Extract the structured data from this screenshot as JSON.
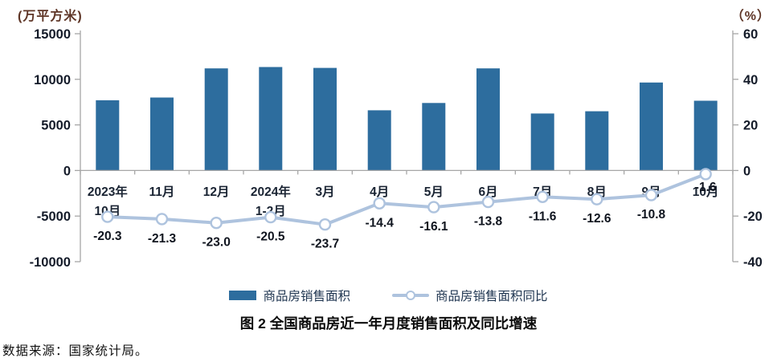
{
  "page": {
    "title": "图 2 全国商品房近一年月度销售面积及同比增速",
    "source": "数据来源：国家统计局。"
  },
  "axes": {
    "left_unit": "(万平方米)",
    "right_unit": "（%）"
  },
  "legend": {
    "items": [
      {
        "label": "商品房销售面积",
        "marker": "bar-swatch"
      },
      {
        "label": "商品房销售面积同比",
        "marker": "line-circle-swatch"
      }
    ]
  },
  "chart_data": {
    "type": "combo",
    "title": "图 2 全国商品房近一年月度销售面积及同比增速",
    "categories": [
      [
        "2023年",
        "10月"
      ],
      [
        "11月"
      ],
      [
        "12月"
      ],
      [
        "2024年",
        "1-2月"
      ],
      [
        "3月"
      ],
      [
        "4月"
      ],
      [
        "5月"
      ],
      [
        "6月"
      ],
      [
        "7月"
      ],
      [
        "8月"
      ],
      [
        "9月"
      ],
      [
        "10月"
      ]
    ],
    "series": [
      {
        "name": "商品房销售面积",
        "type": "bar",
        "axis": "left",
        "color": "#2d6d9e",
        "values": [
          7700,
          8000,
          11200,
          11350,
          11250,
          6600,
          7400,
          11200,
          6250,
          6500,
          9650,
          7650
        ]
      },
      {
        "name": "商品房销售面积同比",
        "type": "line",
        "axis": "right",
        "color": "#aec3de",
        "marker": "open-circle",
        "values": [
          -20.3,
          -21.3,
          -23.0,
          -20.5,
          -23.7,
          -14.4,
          -16.1,
          -13.8,
          -11.6,
          -12.6,
          -10.8,
          -1.6
        ],
        "labels": [
          "-20.3",
          "-21.3",
          "-23.0",
          "-20.5",
          "-23.7",
          "-14.4",
          "-16.1",
          "-13.8",
          "-11.6",
          "-12.6",
          "-10.8",
          "-1.6"
        ]
      }
    ],
    "left_axis": {
      "unit": "(万平方米)",
      "min": -10000,
      "max": 15000,
      "ticks": [
        15000,
        10000,
        5000,
        0,
        -5000,
        -10000
      ]
    },
    "right_axis": {
      "unit": "（%）",
      "min": -40,
      "max": 60,
      "ticks": [
        60,
        40,
        20,
        0,
        -20,
        -40
      ]
    },
    "grid": false,
    "legend_position": "bottom",
    "axis_color": "#a6a6a6"
  }
}
